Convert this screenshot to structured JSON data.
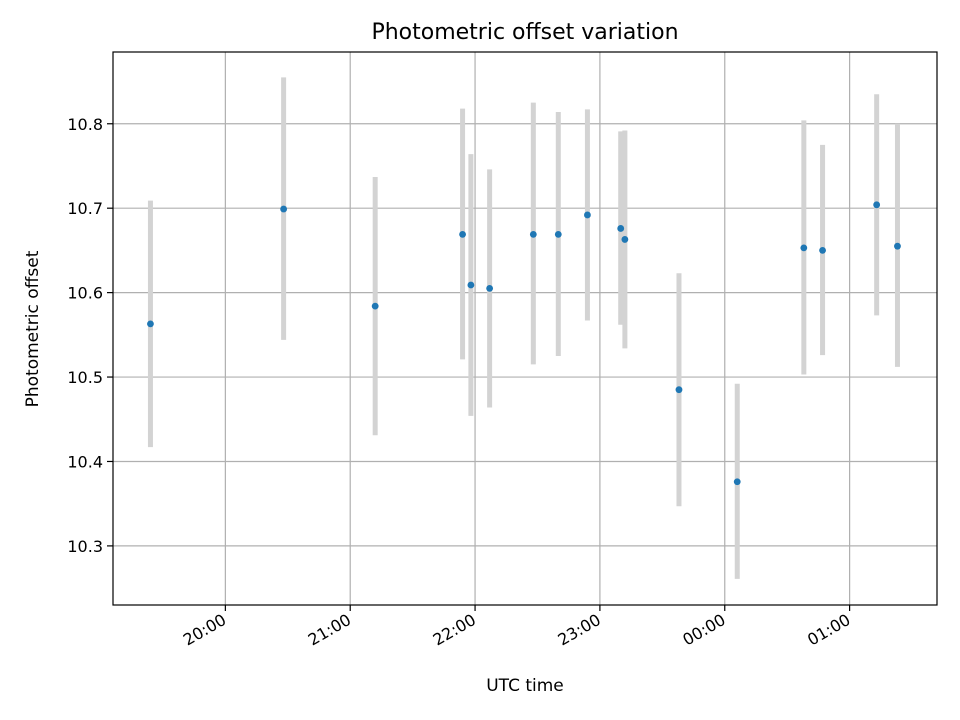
{
  "chart_data": {
    "type": "scatter",
    "title": "Photometric offset variation",
    "xlabel": "UTC time",
    "ylabel": "Photometric offset",
    "x_axis_kind": "time",
    "grid": true,
    "xlim": [
      "19:06",
      "01:42"
    ],
    "ylim": [
      10.23,
      10.885
    ],
    "xticks": [
      "20:00",
      "21:00",
      "22:00",
      "23:00",
      "00:00",
      "01:00"
    ],
    "yticks": [
      10.3,
      10.4,
      10.5,
      10.6,
      10.7,
      10.8
    ],
    "ytick_labels": [
      "10.3",
      "10.4",
      "10.5",
      "10.6",
      "10.7",
      "10.8"
    ],
    "point_color": "#1f77b4",
    "errorbar_color": "#d3d3d3",
    "points": [
      {
        "t": "19:24",
        "y": 10.563,
        "lo": 10.417,
        "hi": 10.709
      },
      {
        "t": "20:28",
        "y": 10.699,
        "lo": 10.544,
        "hi": 10.855
      },
      {
        "t": "21:12",
        "y": 10.584,
        "lo": 10.431,
        "hi": 10.737
      },
      {
        "t": "21:54",
        "y": 10.669,
        "lo": 10.521,
        "hi": 10.818
      },
      {
        "t": "21:58",
        "y": 10.609,
        "lo": 10.454,
        "hi": 10.764
      },
      {
        "t": "22:07",
        "y": 10.605,
        "lo": 10.464,
        "hi": 10.746
      },
      {
        "t": "22:28",
        "y": 10.669,
        "lo": 10.515,
        "hi": 10.825
      },
      {
        "t": "22:40",
        "y": 10.669,
        "lo": 10.525,
        "hi": 10.814
      },
      {
        "t": "22:54",
        "y": 10.692,
        "lo": 10.567,
        "hi": 10.817
      },
      {
        "t": "23:10",
        "y": 10.676,
        "lo": 10.562,
        "hi": 10.791
      },
      {
        "t": "23:12",
        "y": 10.663,
        "lo": 10.534,
        "hi": 10.792
      },
      {
        "t": "23:38",
        "y": 10.485,
        "lo": 10.347,
        "hi": 10.623
      },
      {
        "t": "00:06",
        "y": 10.376,
        "lo": 10.261,
        "hi": 10.492
      },
      {
        "t": "00:38",
        "y": 10.653,
        "lo": 10.503,
        "hi": 10.804
      },
      {
        "t": "00:47",
        "y": 10.65,
        "lo": 10.526,
        "hi": 10.775
      },
      {
        "t": "01:13",
        "y": 10.704,
        "lo": 10.573,
        "hi": 10.835
      },
      {
        "t": "01:23",
        "y": 10.655,
        "lo": 10.512,
        "hi": 10.8
      }
    ]
  }
}
